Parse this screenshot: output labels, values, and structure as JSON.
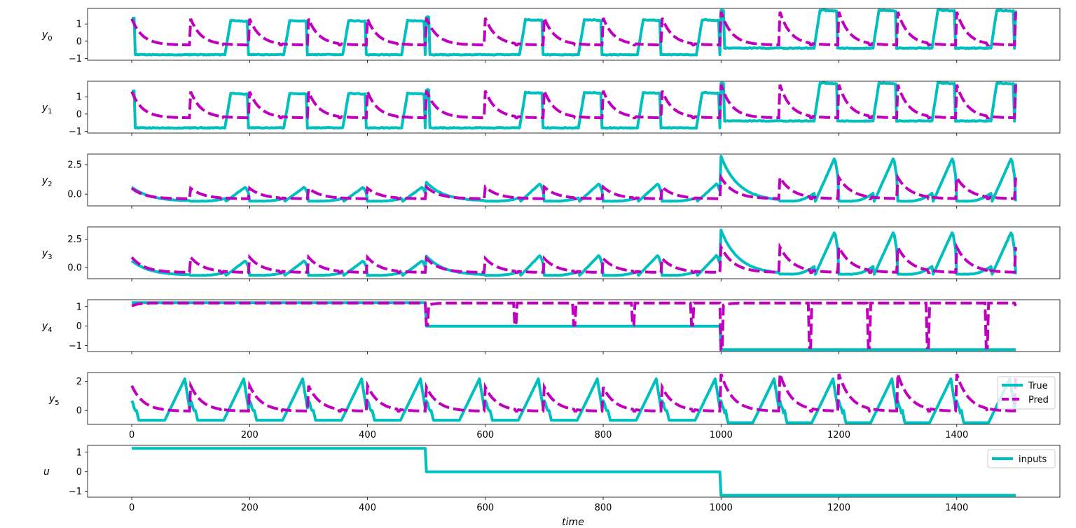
{
  "chart_data": {
    "type": "line",
    "xlabel": "time",
    "xlim": [
      -75,
      1575
    ],
    "x_ticks": [
      0,
      200,
      400,
      600,
      800,
      1000,
      1200,
      1400
    ],
    "colors": {
      "true": "#00bfbf",
      "pred": "#bf00bf"
    },
    "legend_main": {
      "placement": "right",
      "entries": [
        "True",
        "Pred"
      ]
    },
    "legend_inputs": {
      "placement": "upper right",
      "entries": [
        "inputs"
      ]
    },
    "panels": [
      {
        "ylabel": "y",
        "ylabel_sub": "0",
        "ylim": [
          -1.1,
          1.9
        ],
        "yticks": [
          -1,
          0,
          1
        ],
        "true": {
          "kind": "square",
          "base": [
            -0.78,
            -0.78,
            -0.4
          ],
          "high": [
            1.2,
            1.25,
            1.8
          ],
          "rise_width": 10,
          "on_width": 40,
          "pulse_starts": [
            60,
            160,
            260,
            360,
            560,
            660,
            760,
            860,
            1060,
            1160,
            1260,
            1360
          ],
          "first_high": [
            1.35,
            1.4,
            1.8
          ]
        },
        "pred": {
          "kind": "decay",
          "level": -0.22,
          "peak": [
            1.3,
            1.35,
            1.7
          ],
          "tau": 18
        }
      },
      {
        "ylabel": "y",
        "ylabel_sub": "1",
        "ylim": [
          -1.1,
          1.9
        ],
        "yticks": [
          -1,
          0,
          1
        ],
        "true": {
          "kind": "square",
          "base": [
            -0.8,
            -0.8,
            -0.4
          ],
          "high": [
            1.2,
            1.25,
            1.8
          ],
          "rise_width": 10,
          "on_width": 40,
          "pulse_starts": [
            60,
            160,
            260,
            360,
            560,
            660,
            760,
            860,
            1060,
            1160,
            1260,
            1360
          ],
          "first_high": [
            1.35,
            1.4,
            1.8
          ]
        },
        "pred": {
          "kind": "decay",
          "level": -0.22,
          "peak": [
            1.3,
            1.35,
            1.7
          ],
          "tau": 18
        }
      },
      {
        "ylabel": "y",
        "ylabel_sub": "2",
        "ylim": [
          -1.0,
          3.4
        ],
        "yticks": [
          0.0,
          2.5
        ],
        "true": {
          "kind": "hump",
          "base": [
            -0.6,
            -0.6,
            -0.6
          ],
          "peak": [
            0.6,
            0.9,
            3.1
          ],
          "first": [
            0.6,
            1.0,
            3.2
          ]
        },
        "pred": {
          "kind": "decay",
          "level": -0.4,
          "peak": [
            0.5,
            0.6,
            1.4
          ],
          "tau": 22
        }
      },
      {
        "ylabel": "y",
        "ylabel_sub": "3",
        "ylim": [
          -1.0,
          3.6
        ],
        "yticks": [
          0.0,
          2.5
        ],
        "true": {
          "kind": "hump",
          "base": [
            -0.7,
            -0.7,
            -0.6
          ],
          "peak": [
            0.6,
            1.1,
            3.2
          ],
          "first": [
            0.6,
            1.0,
            3.3
          ]
        },
        "pred": {
          "kind": "decay",
          "level": -0.45,
          "peak": [
            0.9,
            0.8,
            1.8
          ],
          "tau": 22
        }
      },
      {
        "ylabel": "y",
        "ylabel_sub": "4",
        "ylim": [
          -1.3,
          1.35
        ],
        "yticks": [
          -1,
          0,
          1
        ],
        "true": {
          "kind": "steps",
          "values": [
            1.2,
            0.0,
            -1.2
          ]
        },
        "pred": {
          "kind": "dips",
          "level": 1.18
        }
      },
      {
        "ylabel": "y",
        "ylabel_sub": "5",
        "ylim": [
          -0.95,
          2.6
        ],
        "yticks": [
          0,
          2
        ],
        "true": {
          "kind": "tri",
          "base": [
            -0.7,
            -0.7,
            -0.8
          ],
          "peak": [
            2.1,
            2.1,
            2.1
          ]
        },
        "pred": {
          "kind": "decay",
          "level": -0.05,
          "peak": [
            1.7,
            1.6,
            2.5
          ],
          "tau": 20
        }
      },
      {
        "ylabel": "u",
        "ylabel_sub": "",
        "ylim": [
          -1.3,
          1.35
        ],
        "yticks": [
          -1,
          0,
          1
        ],
        "true": {
          "kind": "steps",
          "values": [
            1.2,
            0.0,
            -1.2
          ]
        },
        "inputs_only": true
      }
    ]
  }
}
